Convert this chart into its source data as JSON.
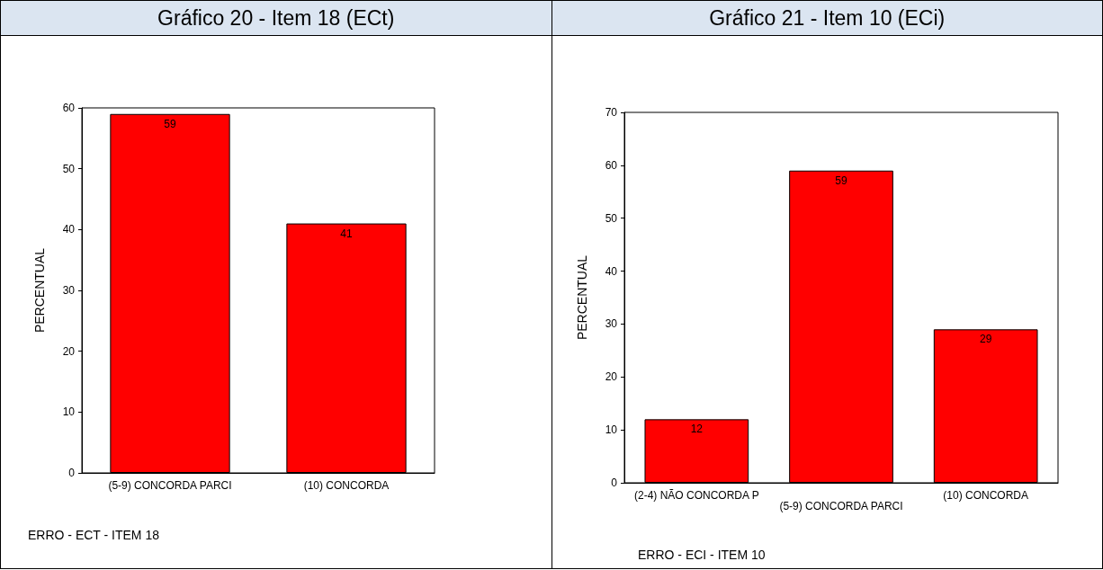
{
  "chart_data": [
    {
      "type": "bar",
      "title": "Gráfico 20 - Item 18 (ECt)",
      "categories": [
        "(5-9) CONCORDA PARCI",
        "(10) CONCORDA"
      ],
      "values": [
        59,
        41
      ],
      "color": "#ff0000",
      "ylim": [
        0,
        60
      ],
      "yticks": [
        0,
        10,
        20,
        30,
        40,
        50,
        60
      ],
      "ylabel": "PERCENTUAL",
      "xlabel": "ERRO - ECT - ITEM 18",
      "data_labels": true,
      "grid": false
    },
    {
      "type": "bar",
      "title": "Gráfico 21 - Item 10 (ECi)",
      "categories": [
        "(2-4) NÃO CONCORDA P",
        "(5-9) CONCORDA PARCI",
        "(10) CONCORDA"
      ],
      "values": [
        12,
        59,
        29
      ],
      "color": "#ff0000",
      "ylim": [
        0,
        70
      ],
      "yticks": [
        0,
        10,
        20,
        30,
        40,
        50,
        60,
        70
      ],
      "ylabel": "PERCENTUAL",
      "xlabel": "ERRO - ECI - ITEM 10",
      "data_labels": true,
      "grid": false
    }
  ]
}
